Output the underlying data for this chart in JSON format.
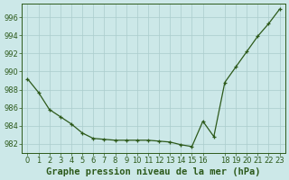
{
  "x": [
    0,
    1,
    2,
    3,
    4,
    5,
    6,
    7,
    8,
    9,
    10,
    11,
    12,
    13,
    14,
    15,
    16,
    17,
    18,
    19,
    20,
    21,
    22,
    23
  ],
  "y": [
    989.2,
    987.7,
    985.8,
    985.0,
    984.2,
    983.2,
    982.6,
    982.5,
    982.4,
    982.4,
    982.4,
    982.4,
    982.3,
    982.2,
    981.9,
    981.7,
    984.5,
    982.8,
    988.8,
    990.5,
    992.2,
    993.9,
    995.3,
    996.9
  ],
  "line_color": "#2d5a1b",
  "marker_color": "#2d5a1b",
  "bg_color": "#cce8e8",
  "grid_color": "#aacccc",
  "xlabel": "Graphe pression niveau de la mer (hPa)",
  "xlabel_color": "#2d5a1b",
  "ylabel_ticks": [
    982,
    984,
    986,
    988,
    990,
    992,
    994,
    996
  ],
  "ylim": [
    981.0,
    997.5
  ],
  "xlim": [
    -0.5,
    23.5
  ],
  "tick_color": "#2d5a1b",
  "tick_fontsize": 6.0,
  "xlabel_fontsize": 7.5
}
